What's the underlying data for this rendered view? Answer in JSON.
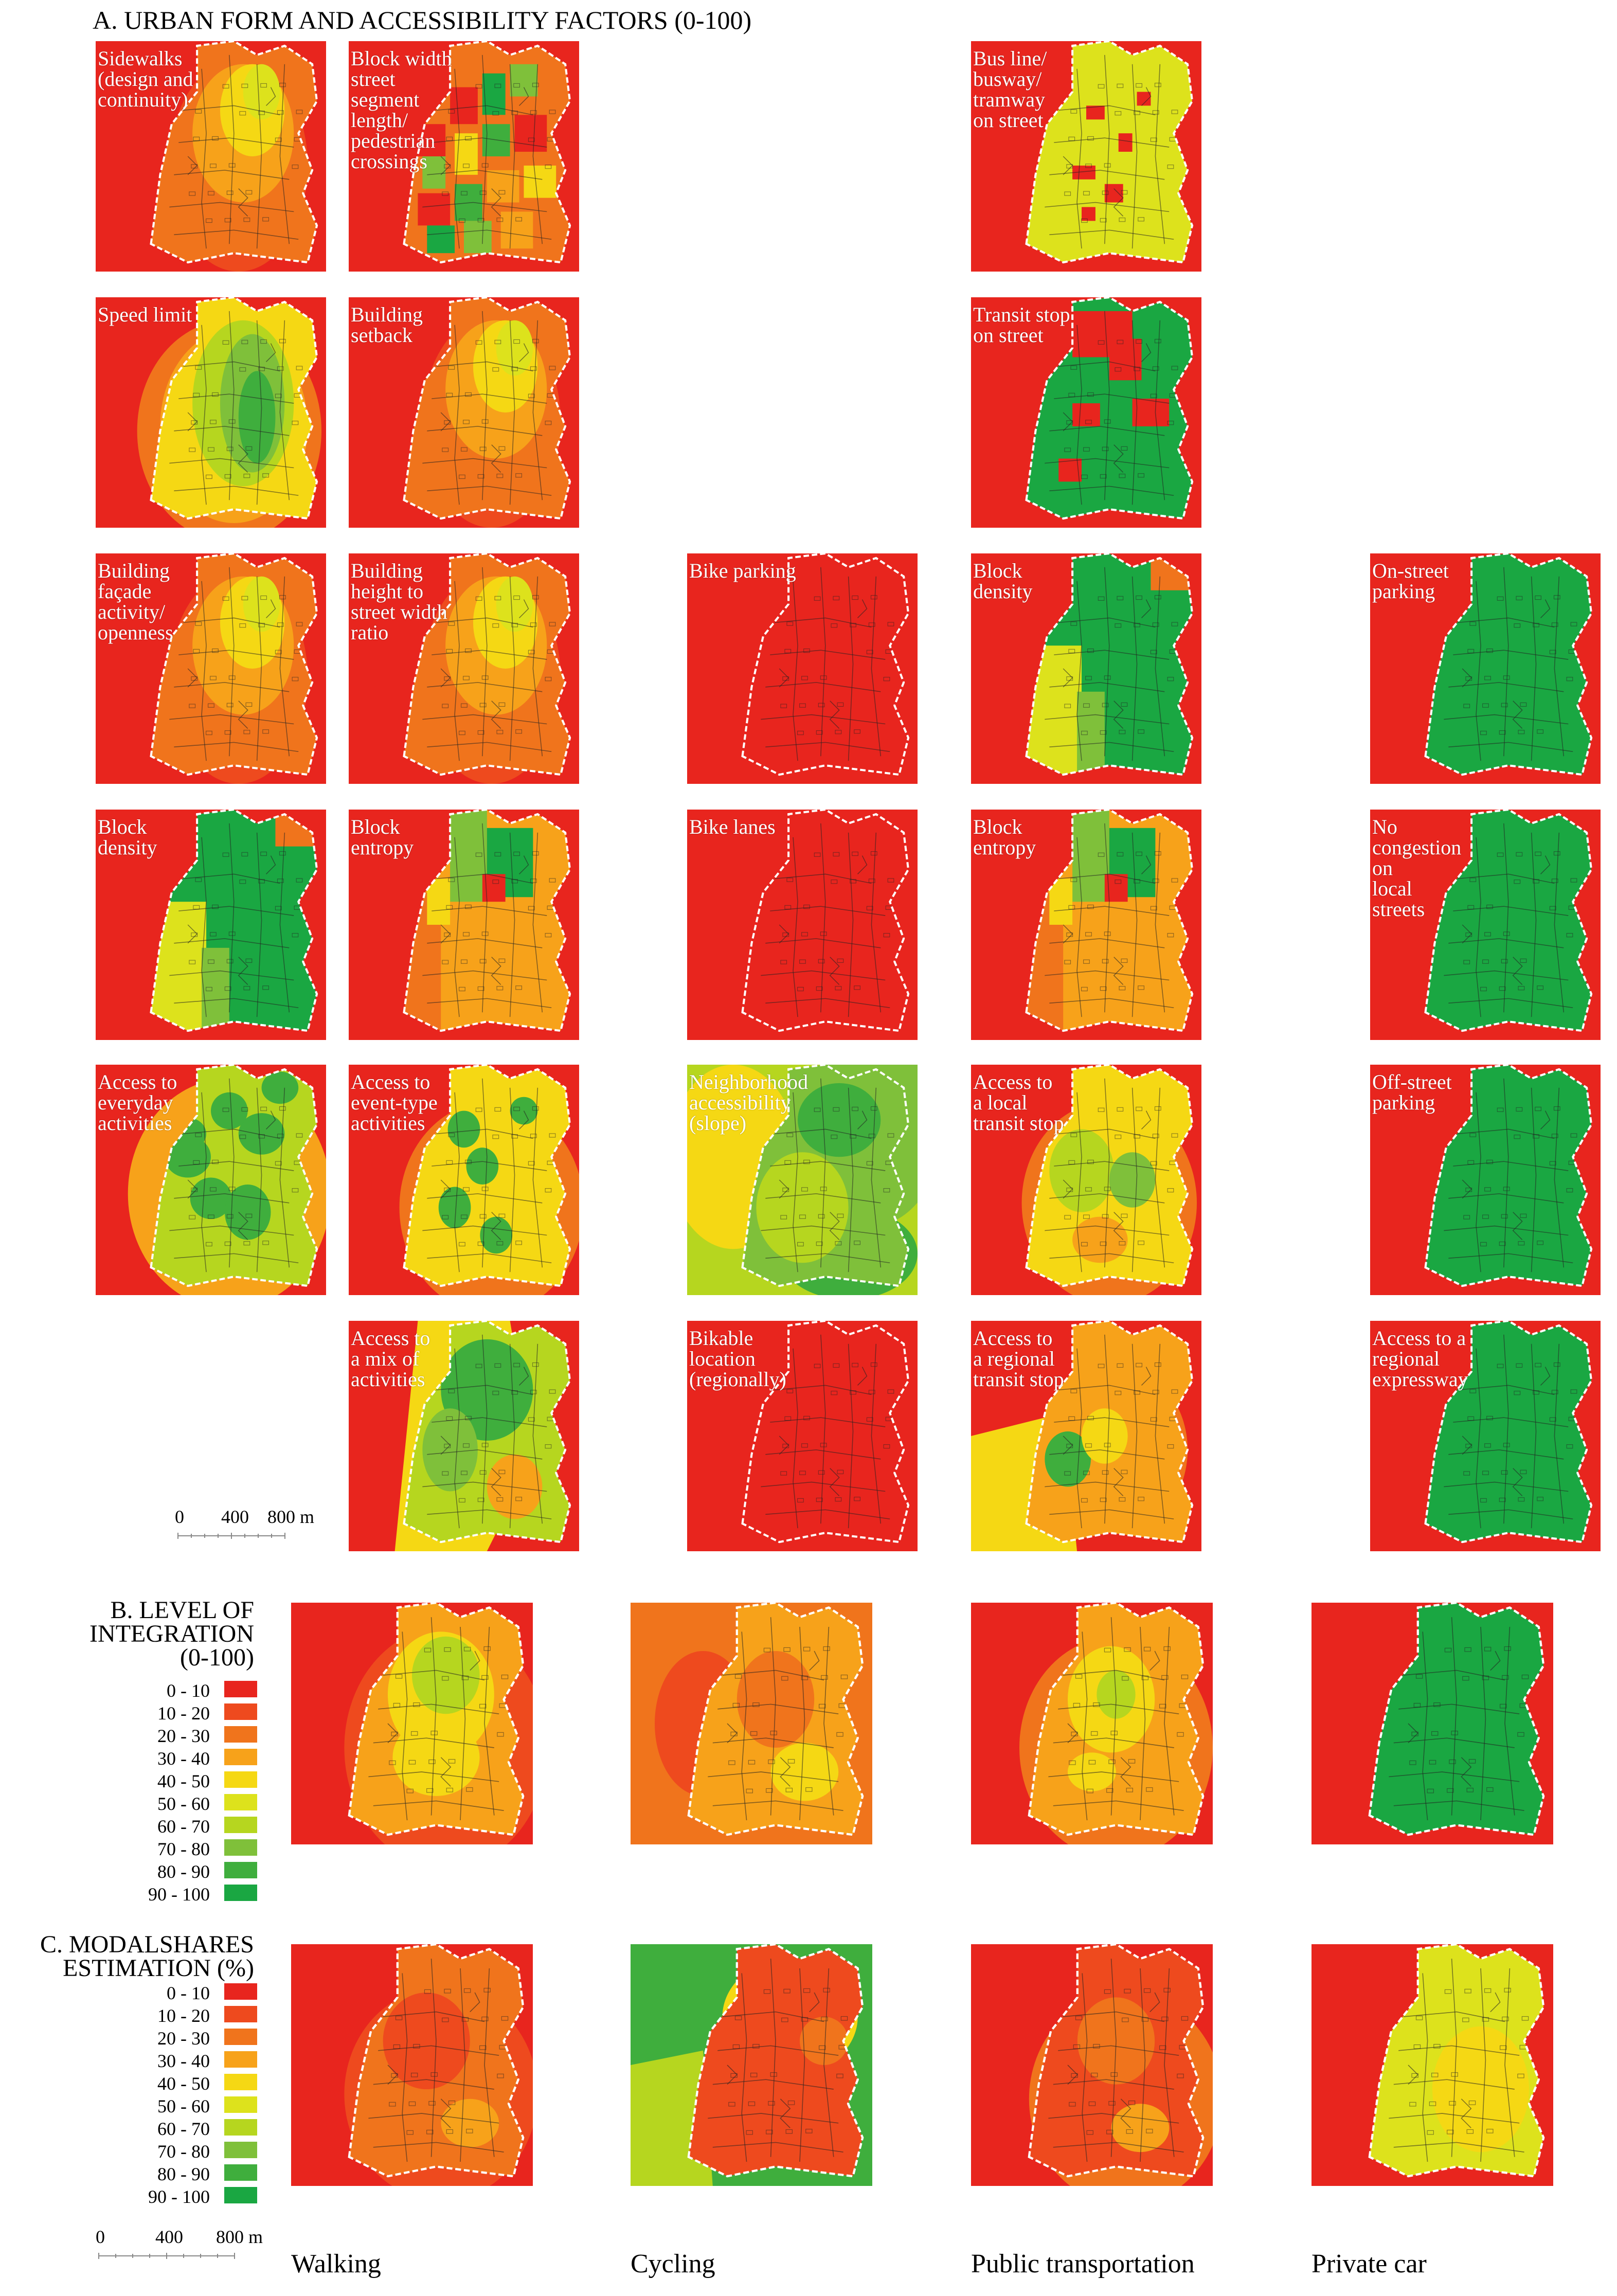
{
  "sections": {
    "a_title": "A. URBAN FORM AND ACCESSIBILITY FACTORS (0-100)",
    "b_title": "B. LEVEL OF\nINTEGRATION\n(0-100)",
    "c_title": "C. MODALSHARES\nESTIMATION (%)"
  },
  "legend": {
    "items": [
      {
        "label": "0 - 10",
        "color": "#e8251e"
      },
      {
        "label": "10 - 20",
        "color": "#ee4a1e"
      },
      {
        "label": "20 - 30",
        "color": "#f0741c"
      },
      {
        "label": "30 - 40",
        "color": "#f7a21a"
      },
      {
        "label": "40 - 50",
        "color": "#f5d814"
      },
      {
        "label": "50 - 60",
        "color": "#dde21c"
      },
      {
        "label": "60 - 70",
        "color": "#b6d61f"
      },
      {
        "label": "70 - 80",
        "color": "#7fc03a"
      },
      {
        "label": "80 - 90",
        "color": "#3fae3d"
      },
      {
        "label": "90 - 100",
        "color": "#1aa742"
      }
    ]
  },
  "scale": {
    "t0": "0",
    "t1": "400",
    "t2": "800 m"
  },
  "columns": {
    "walking": "Walking",
    "cycling": "Cycling",
    "transit": "Public transportation",
    "car": "Private car"
  },
  "factor_labels": [
    "Sidewalks\n(design and\ncontinuity)",
    "Block width\nstreet\nsegment\nlength/\npedestrian\ncrossings",
    "Bus line/\nbusway/\ntramway\non street",
    "Speed limit",
    "Building\nsetback",
    "Transit stop\non street",
    "Building\nfaçade\nactivity/\nopenness",
    "Building\nheight to\nstreet width\nratio",
    "Bike parking",
    "Block\ndensity",
    "On-street\nparking",
    "Block\ndensity",
    "Block\nentropy",
    "Bike lanes",
    "Block\nentropy",
    "No\ncongestion\non\nlocal\nstreets",
    "Access to\neveryday\nactivities",
    "Access to\nevent-type\nactivities",
    "Neighborhood\naccessibility\n(slope)",
    "Access to\na local\ntransit stop",
    "Off-street\nparking",
    "Access to\na mix of\nactivities",
    "Bikable\nlocation\n(regionally)",
    "Access to\na regional\ntransit stop",
    "Access to a\nregional\nexpressway"
  ]
}
